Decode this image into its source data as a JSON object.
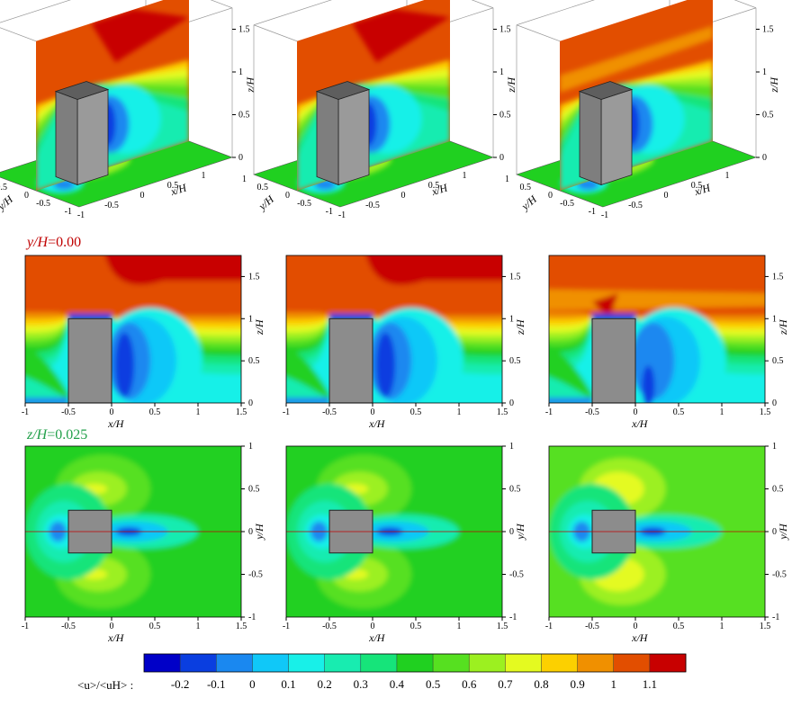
{
  "figure": {
    "section_labels": {
      "vertical_plane": {
        "var": "y/H",
        "value": "=0.00",
        "color": "#c00000"
      },
      "horizontal_plane": {
        "var": "z/H",
        "value": "=0.025",
        "color": "#22a04a"
      }
    },
    "colorbar": {
      "label": "<u>/<uH> :",
      "ticks": [
        "-0.2",
        "-0.1",
        "0",
        "0.1",
        "0.2",
        "0.3",
        "0.4",
        "0.5",
        "0.6",
        "0.7",
        "0.8",
        "0.9",
        "1",
        "1.1"
      ],
      "colors": [
        "#0000c8",
        "#0a3ee0",
        "#1a88f0",
        "#10c8f8",
        "#18f0e8",
        "#18ecb0",
        "#16e47a",
        "#20d020",
        "#56e020",
        "#9cf020",
        "#e4fa20",
        "#fcd000",
        "#f09000",
        "#e24e00",
        "#c80000"
      ]
    }
  },
  "chart_data": [
    {
      "type": "heatmap",
      "view": "3D perspective",
      "panel": "row1-col1",
      "quantity": "<u>/<uH>",
      "xlabel": "x/H",
      "ylabel": "y/H",
      "zlabel": "z/H",
      "x_ticks": [
        "-1",
        "-0.5",
        "0",
        "0.5",
        "1"
      ],
      "y_ticks": [
        "-1",
        "-0.5",
        "0",
        "0.5",
        "1"
      ],
      "z_ticks": [
        "0",
        "0.5",
        "1",
        "1.5"
      ],
      "wake_min": -0.1,
      "freestream": 1.1
    },
    {
      "type": "heatmap",
      "view": "3D perspective",
      "panel": "row1-col2",
      "quantity": "<u>/<uH>",
      "xlabel": "x/H",
      "ylabel": "y/H",
      "zlabel": "z/H",
      "x_ticks": [
        "-1",
        "-0.5",
        "0",
        "0.5",
        "1"
      ],
      "y_ticks": [
        "-1",
        "-0.5",
        "0",
        "0.5",
        "1"
      ],
      "z_ticks": [
        "0",
        "0.5",
        "1",
        "1.5"
      ],
      "wake_min": -0.1,
      "freestream": 1.1
    },
    {
      "type": "heatmap",
      "view": "3D perspective",
      "panel": "row1-col3",
      "quantity": "<u>/<uH>",
      "xlabel": "x/H",
      "ylabel": "y/H",
      "zlabel": "z/H",
      "x_ticks": [
        "-1",
        "-0.5",
        "0",
        "0.5",
        "1"
      ],
      "y_ticks": [
        "-1",
        "-0.5",
        "0",
        "0.5",
        "1"
      ],
      "z_ticks": [
        "0",
        "0.5",
        "1",
        "1.5"
      ],
      "wake_min": 0.0,
      "freestream": 1.0
    },
    {
      "type": "heatmap",
      "plane": "y/H=0.00",
      "panel": "row2-col1",
      "quantity": "<u>/<uH>",
      "xlabel": "x/H",
      "ylabel": "z/H",
      "xlim": [
        -1,
        1.5
      ],
      "ylim": [
        0,
        1.75
      ],
      "x_ticks": [
        "-1",
        "-0.5",
        "0",
        "0.5",
        "1",
        "1.5"
      ],
      "y_ticks": [
        "0",
        "0.5",
        "1",
        "1.5"
      ],
      "building": {
        "x": [
          -0.5,
          0
        ],
        "z": [
          0,
          1
        ]
      },
      "wake_min": -0.1,
      "freestream": 1.1
    },
    {
      "type": "heatmap",
      "plane": "y/H=0.00",
      "panel": "row2-col2",
      "quantity": "<u>/<uH>",
      "xlabel": "x/H",
      "ylabel": "z/H",
      "xlim": [
        -1,
        1.5
      ],
      "ylim": [
        0,
        1.75
      ],
      "x_ticks": [
        "-1",
        "-0.5",
        "0",
        "0.5",
        "1",
        "1.5"
      ],
      "y_ticks": [
        "0",
        "0.5",
        "1",
        "1.5"
      ],
      "building": {
        "x": [
          -0.5,
          0
        ],
        "z": [
          0,
          1
        ]
      },
      "wake_min": -0.1,
      "freestream": 1.1
    },
    {
      "type": "heatmap",
      "plane": "y/H=0.00",
      "panel": "row2-col3",
      "quantity": "<u>/<uH>",
      "xlabel": "x/H",
      "ylabel": "z/H",
      "xlim": [
        -1,
        1.5
      ],
      "ylim": [
        0,
        1.75
      ],
      "x_ticks": [
        "-1",
        "-0.5",
        "0",
        "0.5",
        "1",
        "1.5"
      ],
      "y_ticks": [
        "0",
        "0.5",
        "1",
        "1.5"
      ],
      "building": {
        "x": [
          -0.5,
          0
        ],
        "z": [
          0,
          1
        ]
      },
      "wake_min": 0.0,
      "freestream": 1.0
    },
    {
      "type": "heatmap",
      "plane": "z/H=0.025",
      "panel": "row3-col1",
      "quantity": "<u>/<uH>",
      "xlabel": "x/H",
      "ylabel": "y/H",
      "xlim": [
        -1,
        1.5
      ],
      "ylim": [
        -1,
        1
      ],
      "x_ticks": [
        "-1",
        "-0.5",
        "0",
        "0.5",
        "1",
        "1.5"
      ],
      "y_ticks": [
        "-1",
        "-0.5",
        "0",
        "0.5",
        "1"
      ],
      "building": {
        "x": [
          -0.5,
          0
        ],
        "y": [
          -0.25,
          0.25
        ]
      },
      "wake_min": -0.1,
      "side_max": 0.8
    },
    {
      "type": "heatmap",
      "plane": "z/H=0.025",
      "panel": "row3-col2",
      "quantity": "<u>/<uH>",
      "xlabel": "x/H",
      "ylabel": "y/H",
      "xlim": [
        -1,
        1.5
      ],
      "ylim": [
        -1,
        1
      ],
      "x_ticks": [
        "-1",
        "-0.5",
        "0",
        "0.5",
        "1",
        "1.5"
      ],
      "y_ticks": [
        "-1",
        "-0.5",
        "0",
        "0.5",
        "1"
      ],
      "building": {
        "x": [
          -0.5,
          0
        ],
        "y": [
          -0.25,
          0.25
        ]
      },
      "wake_min": -0.1,
      "side_max": 0.8
    },
    {
      "type": "heatmap",
      "plane": "z/H=0.025",
      "panel": "row3-col3",
      "quantity": "<u>/<uH>",
      "xlabel": "x/H",
      "ylabel": "y/H",
      "xlim": [
        -1,
        1.5
      ],
      "ylim": [
        -1,
        1
      ],
      "x_ticks": [
        "-1",
        "-0.5",
        "0",
        "0.5",
        "1",
        "1.5"
      ],
      "y_ticks": [
        "-1",
        "-0.5",
        "0",
        "0.5",
        "1"
      ],
      "building": {
        "x": [
          -0.5,
          0
        ],
        "y": [
          -0.25,
          0.25
        ]
      },
      "wake_min": 0.0,
      "side_max": 0.8
    }
  ]
}
